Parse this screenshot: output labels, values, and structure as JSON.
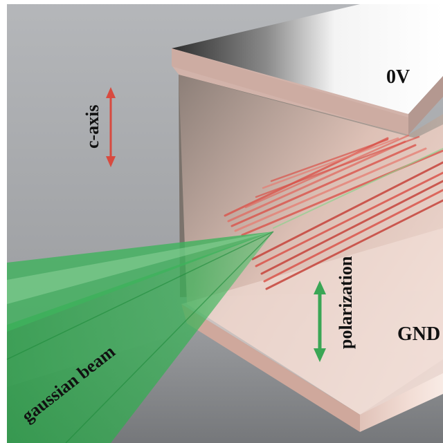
{
  "labels": {
    "top_voltage": "0V",
    "bottom_voltage": "GND",
    "axis": "c-axis",
    "polarization": "polarization",
    "beam": "gaussian beam"
  },
  "colors": {
    "background": "#9c9ea1",
    "crystal_face": "#e9c6bc",
    "crystal_dark": "#6f6760",
    "electrode": "#ffffff",
    "beam_green": "#2fa84f",
    "filament_red": "#d9534a",
    "axis_arrow_red": "#d84a3f",
    "polarization_arrow_green": "#3aa655"
  },
  "icons": {
    "c_axis_arrow": "double-headed-vertical-arrow",
    "polarization_arrow": "double-headed-vertical-arrow"
  }
}
